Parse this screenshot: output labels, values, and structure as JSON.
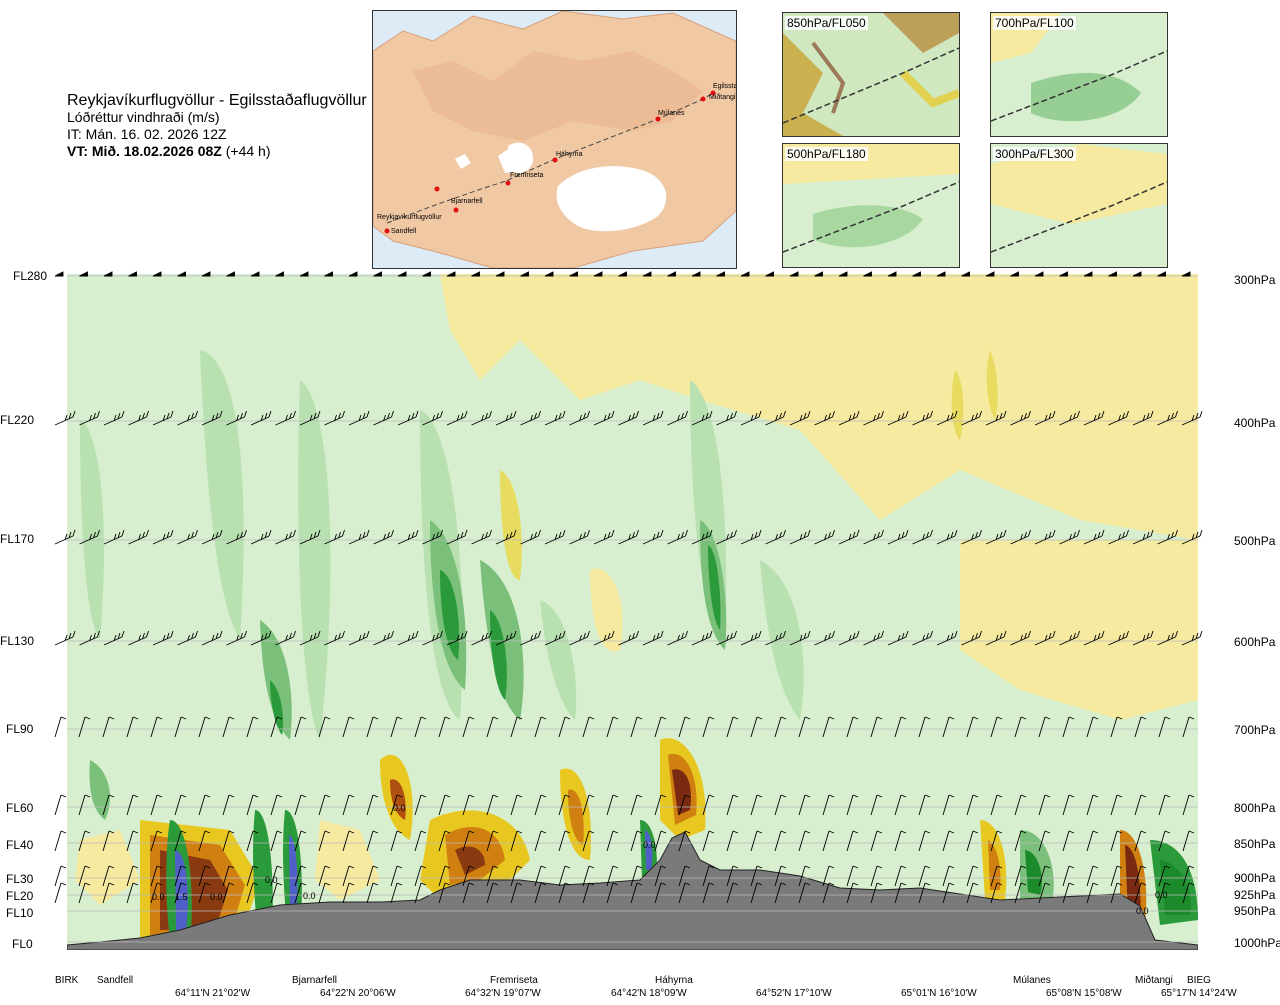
{
  "header": {
    "route": "Reykjavíkurflugvöllur - Egilsstaðaflugvöllur",
    "parameter": "Lóðréttur vindhraði (m/s)",
    "issue_time": "IT: Mán. 16. 02. 2026 12Z",
    "valid_prefix": "VT: Mið. 18.02.2026 08Z",
    "valid_suffix": " (+44 h)"
  },
  "overview_map": {
    "points": [
      "Reykjavíkurflugvöllur",
      "Sandfell",
      "Bjarnarfell",
      "Fremriseta",
      "Háhyrna",
      "Múlanes",
      "Egilsstaðir",
      "Miðtangi"
    ]
  },
  "panels": [
    {
      "label": "850hPa/FL050"
    },
    {
      "label": "700hPa/FL100"
    },
    {
      "label": "500hPa/FL180"
    },
    {
      "label": "300hPa/FL300"
    }
  ],
  "colors": {
    "strong_up": "#1a8a2a",
    "up": "#5fb565",
    "weak_up": "#a8d8a0",
    "neutral": "#d8efcf",
    "weak_down": "#f5eaa0",
    "down": "#e8c820",
    "strong_down": "#d08010",
    "very_strong_down": "#8a2a10",
    "terrain": "#7a7a7a",
    "neg_core": "#5060c8"
  },
  "chart_data": {
    "type": "heatmap",
    "title": "Lóðréttur vindhraði (m/s)",
    "levels": [
      {
        "fl": "FL280",
        "hpa": "300hPa"
      },
      {
        "fl": "FL220",
        "hpa": "400hPa"
      },
      {
        "fl": "FL170",
        "hpa": "500hPa"
      },
      {
        "fl": "FL130",
        "hpa": "600hPa"
      },
      {
        "fl": "FL90",
        "hpa": "700hPa"
      },
      {
        "fl": "FL60",
        "hpa": "800hPa"
      },
      {
        "fl": "FL40",
        "hpa": "850hPa"
      },
      {
        "fl": "FL30",
        "hpa": "900hPa"
      },
      {
        "fl": "FL20",
        "hpa": "925hPa"
      },
      {
        "fl": "FL10",
        "hpa": "950hPa"
      },
      {
        "fl": "FL0",
        "hpa": "1000hPa"
      }
    ],
    "waypoints": [
      "BIRK",
      "Sandfell",
      "Bjarnarfell",
      "Fremriseta",
      "Háhyrna",
      "Múlanes",
      "Miðtangi",
      "BIEG"
    ],
    "coordinates": [
      "64°11'N 21°02'W",
      "64°22'N 20°06'W",
      "64°32'N 19°07'W",
      "64°42'N 18°09'W",
      "64°52'N 17°10'W",
      "65°01'N 16°10'W",
      "65°08'N 15°08'W",
      "65°17'N 14°24'W"
    ],
    "contour_labels": [
      "0.0",
      "1.5",
      "0.0",
      "0.0",
      "0.0",
      "0.0",
      "0.0",
      "0.0",
      "0.0"
    ]
  }
}
